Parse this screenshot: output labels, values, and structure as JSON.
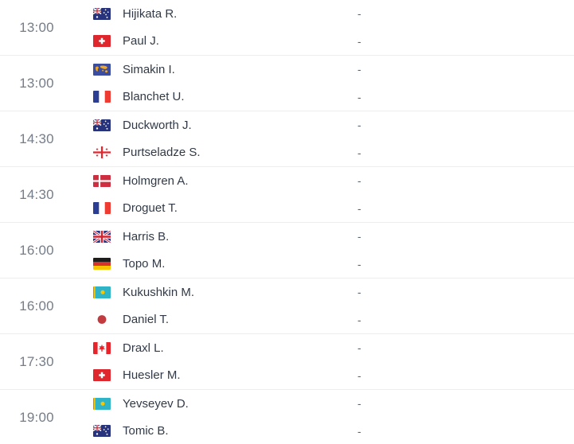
{
  "list": {
    "score_placeholder": "-",
    "matches": [
      {
        "time": "13:00",
        "players": [
          {
            "name": "Hijikata R.",
            "flag": "australia"
          },
          {
            "name": "Paul J.",
            "flag": "switzerland"
          }
        ]
      },
      {
        "time": "13:00",
        "players": [
          {
            "name": "Simakin I.",
            "flag": "world"
          },
          {
            "name": "Blanchet U.",
            "flag": "france"
          }
        ]
      },
      {
        "time": "14:30",
        "players": [
          {
            "name": "Duckworth J.",
            "flag": "australia"
          },
          {
            "name": "Purtseladze S.",
            "flag": "georgia"
          }
        ]
      },
      {
        "time": "14:30",
        "players": [
          {
            "name": "Holmgren A.",
            "flag": "denmark"
          },
          {
            "name": "Droguet T.",
            "flag": "france"
          }
        ]
      },
      {
        "time": "16:00",
        "players": [
          {
            "name": "Harris B.",
            "flag": "united-kingdom"
          },
          {
            "name": "Topo M.",
            "flag": "germany"
          }
        ]
      },
      {
        "time": "16:00",
        "players": [
          {
            "name": "Kukushkin M.",
            "flag": "kazakhstan"
          },
          {
            "name": "Daniel T.",
            "flag": "japan"
          }
        ]
      },
      {
        "time": "17:30",
        "players": [
          {
            "name": "Draxl L.",
            "flag": "canada"
          },
          {
            "name": "Huesler M.",
            "flag": "switzerland"
          }
        ]
      },
      {
        "time": "19:00",
        "players": [
          {
            "name": "Yevseyev D.",
            "flag": "kazakhstan"
          },
          {
            "name": "Tomic B.",
            "flag": "australia"
          }
        ]
      }
    ]
  },
  "colors": {
    "background": "#ffffff",
    "divider": "#ededed",
    "time_text": "#747d89",
    "player_name_text": "#313a46",
    "score_text": "#5b6570"
  }
}
